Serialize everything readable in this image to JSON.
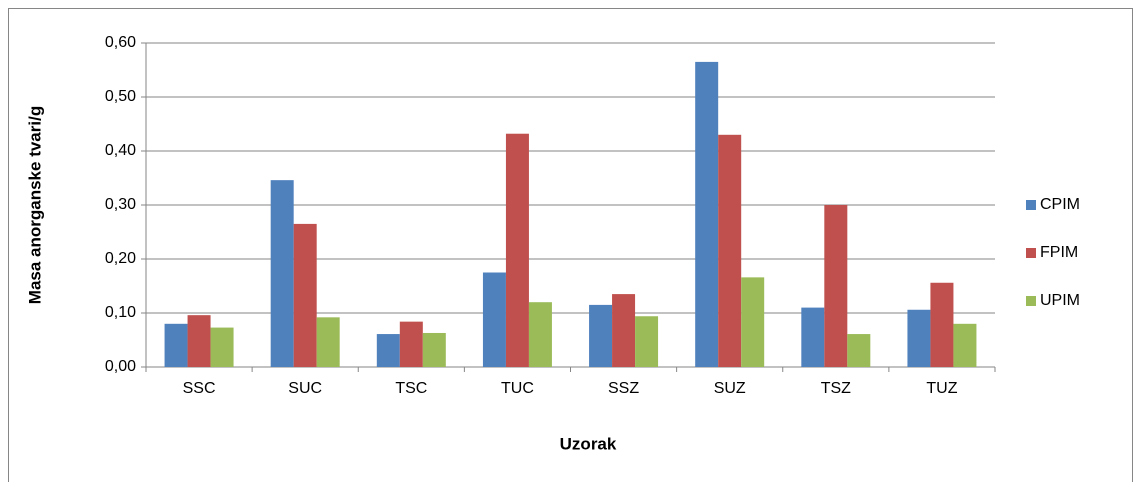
{
  "chart_data": {
    "type": "bar",
    "x_label": "Uzorak",
    "y_label": "Masa anorganske tvari/g",
    "categories": [
      "SSC",
      "SUC",
      "TSC",
      "TUC",
      "SSZ",
      "SUZ",
      "TSZ",
      "TUZ"
    ],
    "series": [
      {
        "name": "CPIM",
        "color": "#4f81bd",
        "values": [
          0.08,
          0.346,
          0.061,
          0.175,
          0.115,
          0.565,
          0.11,
          0.106
        ]
      },
      {
        "name": "FPIM",
        "color": "#c0504d",
        "values": [
          0.096,
          0.265,
          0.084,
          0.432,
          0.135,
          0.43,
          0.3,
          0.156
        ]
      },
      {
        "name": "UPIM",
        "color": "#9bbb59",
        "values": [
          0.073,
          0.092,
          0.063,
          0.12,
          0.094,
          0.166,
          0.061,
          0.08
        ]
      }
    ],
    "ylim": [
      0,
      0.6
    ],
    "yticks": [
      {
        "value": 0,
        "label": "0,00"
      },
      {
        "value": 0.1,
        "label": "0,10"
      },
      {
        "value": 0.2,
        "label": "0,20"
      },
      {
        "value": 0.3,
        "label": "0,30"
      },
      {
        "value": 0.4,
        "label": "0,40"
      },
      {
        "value": 0.5,
        "label": "0,50"
      },
      {
        "value": 0.6,
        "label": "0,60"
      }
    ],
    "grid": true,
    "legend": "right"
  }
}
